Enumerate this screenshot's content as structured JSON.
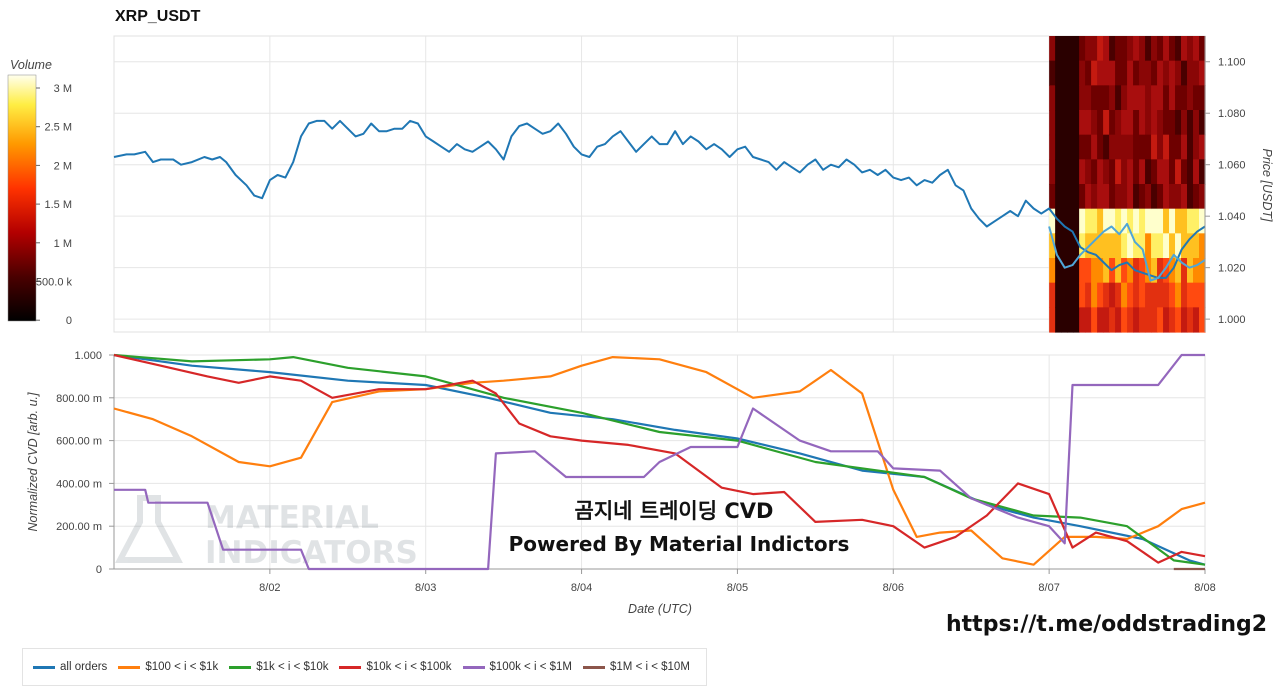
{
  "title": "XRP_USDT",
  "volume_colorbar": {
    "label": "Volume",
    "ticks": [
      "3 M",
      "2.5 M",
      "2 M",
      "1.5 M",
      "1 M",
      "500.0 k",
      "0"
    ]
  },
  "overlay": {
    "line1": "곰지네 트레이딩 CVD",
    "line2": "Powered By Material Indictors",
    "watermark_line1": "MATERIAL",
    "watermark_line2": "INDICATORS"
  },
  "link_text": "https://t.me/oddstrading2",
  "legend": [
    {
      "label": "all orders",
      "color": "#1f77b4"
    },
    {
      "label": "$100 < i < $1k",
      "color": "#ff7f0e"
    },
    {
      "label": "$1k < i < $10k",
      "color": "#2ca02c"
    },
    {
      "label": "$10k < i < $100k",
      "color": "#d62728"
    },
    {
      "label": "$100k < i < $1M",
      "color": "#9467bd"
    },
    {
      "label": "$1M < i < $10M",
      "color": "#8c564b"
    }
  ],
  "chart_data": [
    {
      "type": "line",
      "ylabel": "Price [USDT]",
      "ylim": [
        0.995,
        1.11
      ],
      "xlim": [
        0,
        7
      ],
      "yticks": [
        "1.000",
        "1.020",
        "1.040",
        "1.060",
        "1.080",
        "1.100"
      ],
      "series": [
        {
          "color": "#1f77b4",
          "x": [
            0.0,
            0.08,
            0.13,
            0.2,
            0.25,
            0.3,
            0.38,
            0.43,
            0.5,
            0.58,
            0.63,
            0.68,
            0.72,
            0.78,
            0.85,
            0.9,
            0.95,
            1.0,
            1.05,
            1.1,
            1.15,
            1.2,
            1.25,
            1.3,
            1.35,
            1.4,
            1.45,
            1.5,
            1.55,
            1.6,
            1.65,
            1.7,
            1.75,
            1.8,
            1.85,
            1.9,
            1.95,
            2.0,
            2.05,
            2.1,
            2.15,
            2.2,
            2.25,
            2.3,
            2.35,
            2.4,
            2.45,
            2.5,
            2.55,
            2.6,
            2.65,
            2.7,
            2.75,
            2.8,
            2.85,
            2.9,
            2.95,
            3.0,
            3.05,
            3.1,
            3.15,
            3.2,
            3.25,
            3.3,
            3.35,
            3.4,
            3.45,
            3.5,
            3.55,
            3.6,
            3.65,
            3.7,
            3.75,
            3.8,
            3.85,
            3.9,
            3.95,
            4.0,
            4.05,
            4.1,
            4.15,
            4.2,
            4.25,
            4.3,
            4.35,
            4.4,
            4.45,
            4.5,
            4.55,
            4.6,
            4.65,
            4.7,
            4.75,
            4.8,
            4.85,
            4.9,
            4.95,
            5.0,
            5.05,
            5.1,
            5.15,
            5.2,
            5.25,
            5.3,
            5.35,
            5.4,
            5.45,
            5.5,
            5.55,
            5.6,
            5.65,
            5.7,
            5.75,
            5.8,
            5.85,
            5.9,
            5.95,
            6.0,
            6.05,
            6.1,
            6.15,
            6.2,
            6.25,
            6.3,
            6.35,
            6.4,
            6.45,
            6.5,
            6.55,
            6.6,
            6.65,
            6.7,
            6.75,
            6.8,
            6.85,
            6.9,
            6.95,
            7.0
          ],
          "y": [
            1.063,
            1.064,
            1.064,
            1.065,
            1.061,
            1.062,
            1.062,
            1.06,
            1.061,
            1.063,
            1.062,
            1.063,
            1.061,
            1.056,
            1.052,
            1.048,
            1.047,
            1.054,
            1.056,
            1.055,
            1.061,
            1.071,
            1.076,
            1.077,
            1.077,
            1.074,
            1.077,
            1.074,
            1.071,
            1.072,
            1.076,
            1.073,
            1.073,
            1.074,
            1.074,
            1.077,
            1.076,
            1.071,
            1.069,
            1.067,
            1.065,
            1.068,
            1.066,
            1.065,
            1.067,
            1.069,
            1.066,
            1.062,
            1.071,
            1.075,
            1.076,
            1.074,
            1.072,
            1.073,
            1.076,
            1.072,
            1.067,
            1.064,
            1.063,
            1.067,
            1.068,
            1.071,
            1.073,
            1.069,
            1.065,
            1.068,
            1.071,
            1.068,
            1.068,
            1.073,
            1.068,
            1.071,
            1.069,
            1.066,
            1.068,
            1.066,
            1.063,
            1.066,
            1.067,
            1.063,
            1.062,
            1.061,
            1.058,
            1.061,
            1.059,
            1.057,
            1.06,
            1.062,
            1.058,
            1.06,
            1.059,
            1.062,
            1.06,
            1.057,
            1.058,
            1.056,
            1.058,
            1.055,
            1.054,
            1.055,
            1.052,
            1.054,
            1.053,
            1.056,
            1.058,
            1.052,
            1.05,
            1.043,
            1.039,
            1.036,
            1.038,
            1.04,
            1.042,
            1.04,
            1.046,
            1.043,
            1.041,
            1.043,
            1.039,
            1.036,
            1.034,
            1.028,
            1.026,
            1.025,
            1.022,
            1.019,
            1.021,
            1.022,
            1.019,
            1.018,
            1.017,
            1.016,
            1.016,
            1.02,
            1.027,
            1.031,
            1.034,
            1.036
          ]
        },
        {
          "color": "#4fa6d8",
          "x": [
            6.0,
            6.05,
            6.1,
            6.15,
            6.2,
            6.25,
            6.3,
            6.35,
            6.4,
            6.45,
            6.5,
            6.55,
            6.6,
            6.65,
            6.7,
            6.75,
            6.8,
            6.85,
            6.9,
            6.95,
            7.0
          ],
          "y": [
            1.036,
            1.025,
            1.02,
            1.021,
            1.025,
            1.028,
            1.031,
            1.034,
            1.036,
            1.033,
            1.037,
            1.03,
            1.027,
            1.015,
            1.016,
            1.02,
            1.025,
            1.022,
            1.02,
            1.021,
            1.023
          ]
        }
      ]
    },
    {
      "type": "line",
      "xlabel": "Date (UTC)",
      "ylabel": "Normalized CVD [arb. u.]",
      "ylim": [
        0,
        1
      ],
      "xlim": [
        0,
        7
      ],
      "xticks": [
        "8/02",
        "8/03",
        "8/04",
        "8/05",
        "8/06",
        "8/07",
        "8/08"
      ],
      "yticks": [
        "0",
        "200.00 m",
        "400.00 m",
        "600.00 m",
        "800.00 m",
        "1.000"
      ],
      "series": [
        {
          "color": "#1f77b4",
          "x": [
            0,
            0.5,
            1,
            1.5,
            2,
            2.4,
            2.8,
            3.2,
            3.6,
            4,
            4.4,
            4.8,
            5.2,
            5.6,
            5.9,
            6.2,
            6.6,
            6.9,
            7
          ],
          "y": [
            1,
            0.95,
            0.92,
            0.88,
            0.86,
            0.8,
            0.73,
            0.7,
            0.65,
            0.61,
            0.54,
            0.46,
            0.43,
            0.3,
            0.24,
            0.2,
            0.14,
            0.04,
            0.02
          ]
        },
        {
          "color": "#ff7f0e",
          "x": [
            0,
            0.25,
            0.5,
            0.8,
            1.0,
            1.2,
            1.4,
            1.7,
            2.0,
            2.3,
            2.5,
            2.8,
            3.0,
            3.2,
            3.5,
            3.8,
            4.1,
            4.4,
            4.6,
            4.8,
            5.0,
            5.15,
            5.3,
            5.5,
            5.7,
            5.9,
            6.1,
            6.3,
            6.5,
            6.7,
            6.85,
            7.0
          ],
          "y": [
            0.75,
            0.7,
            0.62,
            0.5,
            0.48,
            0.52,
            0.78,
            0.83,
            0.84,
            0.87,
            0.88,
            0.9,
            0.95,
            0.99,
            0.98,
            0.92,
            0.8,
            0.83,
            0.93,
            0.82,
            0.37,
            0.15,
            0.17,
            0.18,
            0.05,
            0.02,
            0.15,
            0.15,
            0.14,
            0.2,
            0.28,
            0.31
          ]
        },
        {
          "color": "#2ca02c",
          "x": [
            0,
            0.5,
            1.0,
            1.15,
            1.5,
            2.0,
            2.5,
            3.0,
            3.5,
            4.0,
            4.5,
            5.0,
            5.2,
            5.5,
            5.9,
            6.2,
            6.5,
            6.8,
            7.0
          ],
          "y": [
            1,
            0.97,
            0.98,
            0.99,
            0.94,
            0.9,
            0.8,
            0.73,
            0.64,
            0.6,
            0.5,
            0.45,
            0.43,
            0.33,
            0.25,
            0.24,
            0.2,
            0.04,
            0.02
          ]
        },
        {
          "color": "#d62728",
          "x": [
            0,
            0.3,
            0.6,
            0.8,
            1.0,
            1.2,
            1.4,
            1.7,
            2.0,
            2.3,
            2.45,
            2.6,
            2.8,
            3.0,
            3.3,
            3.6,
            3.9,
            4.1,
            4.3,
            4.5,
            4.8,
            5.0,
            5.2,
            5.4,
            5.6,
            5.8,
            6.0,
            6.15,
            6.3,
            6.5,
            6.7,
            6.85,
            7.0
          ],
          "y": [
            1,
            0.95,
            0.9,
            0.87,
            0.9,
            0.88,
            0.8,
            0.84,
            0.84,
            0.88,
            0.82,
            0.68,
            0.62,
            0.6,
            0.58,
            0.54,
            0.38,
            0.35,
            0.36,
            0.22,
            0.23,
            0.2,
            0.1,
            0.15,
            0.25,
            0.4,
            0.35,
            0.1,
            0.17,
            0.13,
            0.03,
            0.08,
            0.06
          ]
        },
        {
          "color": "#9467bd",
          "x": [
            0,
            0.2,
            0.22,
            0.6,
            0.7,
            1.0,
            1.2,
            1.25,
            2.4,
            2.45,
            2.7,
            2.9,
            3.0,
            3.4,
            3.5,
            3.7,
            4.0,
            4.1,
            4.4,
            4.6,
            4.9,
            5.0,
            5.3,
            5.5,
            5.8,
            6.0,
            6.1,
            6.15,
            6.7,
            6.85,
            7.0
          ],
          "y": [
            0.37,
            0.37,
            0.31,
            0.31,
            0.09,
            0.09,
            0.09,
            0.0,
            0.0,
            0.54,
            0.55,
            0.43,
            0.43,
            0.43,
            0.5,
            0.57,
            0.57,
            0.75,
            0.6,
            0.55,
            0.55,
            0.47,
            0.46,
            0.33,
            0.24,
            0.2,
            0.12,
            0.86,
            0.86,
            1.0,
            1.0
          ]
        },
        {
          "color": "#8c564b",
          "x": [
            6.8,
            7.0
          ],
          "y": [
            0.0,
            0.0
          ]
        }
      ]
    }
  ]
}
